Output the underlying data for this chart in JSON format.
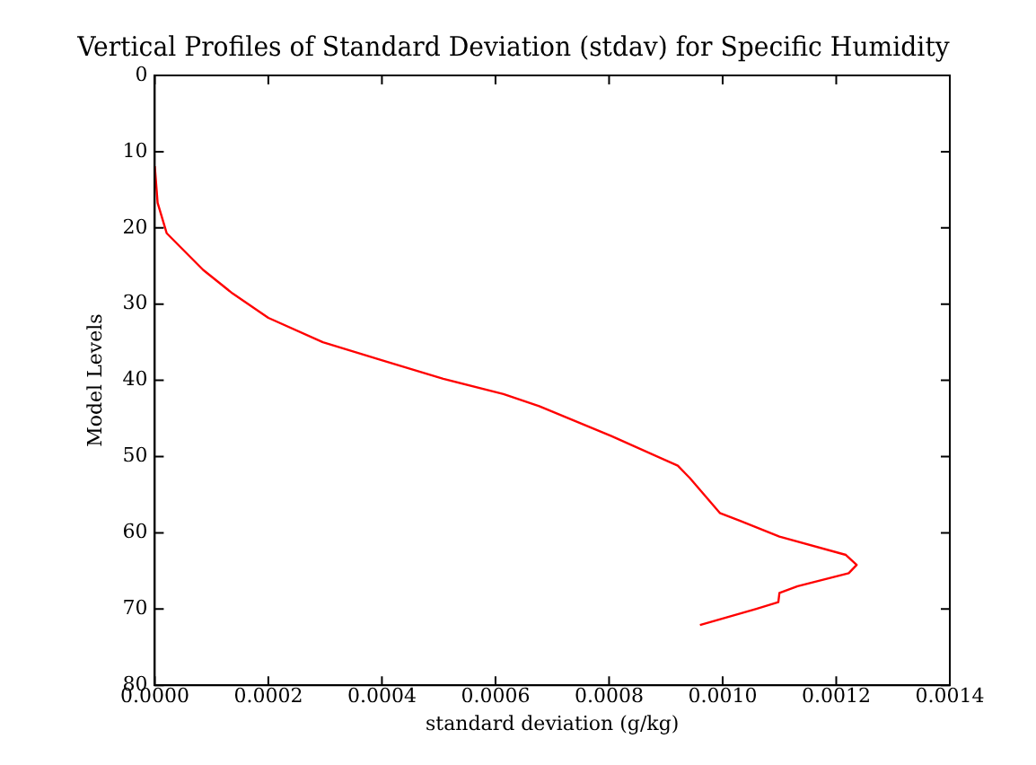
{
  "chart_data": {
    "type": "line",
    "title": "Vertical Profiles of Standard Deviation (stdav) for Specific Humidity",
    "xlabel": "standard deviation (g/kg)",
    "ylabel": "Model Levels",
    "series": [
      {
        "color": "#ff0000",
        "x": [
          0,
          5e-06,
          2.1e-05,
          8.5e-05,
          0.000137,
          0.0002,
          0.000296,
          0.000402,
          0.000508,
          0.000614,
          0.000677,
          0.000804,
          0.000921,
          0.000942,
          0.000995,
          0.00103,
          0.0011,
          0.001217,
          0.001236,
          0.001222,
          0.001132,
          0.0011,
          0.001098,
          0.001058,
          0.00096
        ],
        "values": [
          11.9,
          16.7,
          20.7,
          25.5,
          28.6,
          31.8,
          35,
          37.4,
          39.8,
          41.8,
          43.4,
          47.3,
          51.2,
          52.8,
          57.4,
          58.4,
          60.5,
          62.9,
          64.2,
          65.3,
          67,
          67.9,
          69.1,
          70,
          72.1
        ]
      }
    ],
    "xlim": [
      0,
      0.0014
    ],
    "xticks": [
      {
        "value": 0,
        "label": "0.0000"
      },
      {
        "value": 0.0002,
        "label": "0.0002"
      },
      {
        "value": 0.0004,
        "label": "0.0004"
      },
      {
        "value": 0.0006,
        "label": "0.0006"
      },
      {
        "value": 0.0008,
        "label": "0.0008"
      },
      {
        "value": 0.001,
        "label": "0.0010"
      },
      {
        "value": 0.0012,
        "label": "0.0012"
      },
      {
        "value": 0.0014,
        "label": "0.0014"
      }
    ],
    "ylim": [
      80,
      0
    ],
    "yticks": [
      0,
      10,
      20,
      30,
      40,
      50,
      60,
      70,
      80
    ],
    "grid": false,
    "legend": false,
    "marker": "none",
    "line_style": "solid"
  }
}
